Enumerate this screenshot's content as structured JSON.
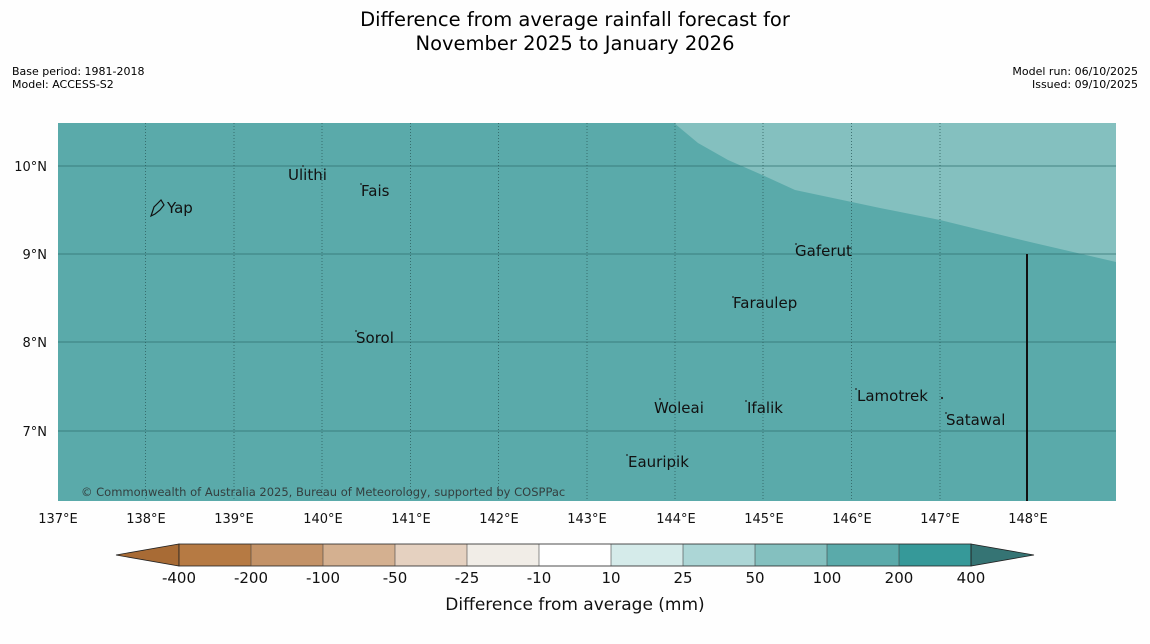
{
  "title": {
    "line1": "Difference from average rainfall forecast for",
    "line2": "November 2025 to January 2026"
  },
  "meta": {
    "base_period": "Base period: 1981-2018",
    "model": "Model: ACCESS-S2",
    "model_run": "Model run: 06/10/2025",
    "issued": "Issued: 09/10/2025"
  },
  "map": {
    "lat_ticks": [
      "10°N",
      "9°N",
      "8°N",
      "7°N"
    ],
    "lon_ticks": [
      "137°E",
      "138°E",
      "139°E",
      "140°E",
      "141°E",
      "142°E",
      "143°E",
      "144°E",
      "145°E",
      "146°E",
      "147°E",
      "148°E"
    ],
    "places": [
      "Ulithi",
      "Fais",
      "Yap",
      "Gaferut",
      "Faraulep",
      "Sorol",
      "Lamotrek",
      "Woleai",
      "Ifalik",
      "Satawal",
      "Eauripik"
    ],
    "copyright": "© Commonwealth of Australia 2025, Bureau of Meteorology, supported by COSPPac",
    "region_colors": {
      "main": "#5aaaaa",
      "light": "#84c0bf"
    }
  },
  "colorbar": {
    "label": "Difference from average (mm)",
    "ticks": [
      "-400",
      "-200",
      "-100",
      "-50",
      "-25",
      "-10",
      "10",
      "25",
      "50",
      "100",
      "200",
      "400"
    ],
    "colors": [
      "#a86b35",
      "#b67a43",
      "#c39267",
      "#d4b090",
      "#e5d1c0",
      "#f1ede7",
      "#ffffff",
      "#d5ebea",
      "#acd6d6",
      "#84c0bf",
      "#5aaaaa",
      "#369999",
      "#357474"
    ]
  }
}
